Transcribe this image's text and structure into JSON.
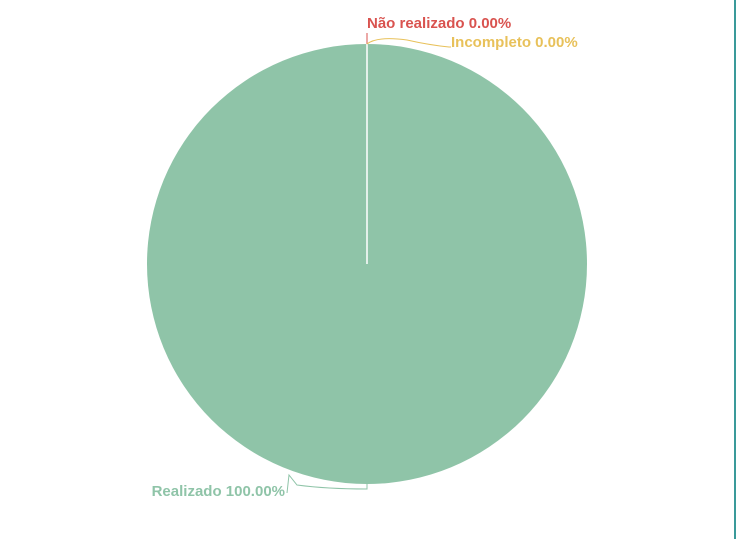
{
  "chart_data": {
    "type": "pie",
    "title": "",
    "slices": [
      {
        "name": "Realizado",
        "value": 100.0,
        "label": "Realizado 100.00%",
        "color": "#8fc4a8"
      },
      {
        "name": "Não realizado",
        "value": 0.0,
        "label": "Não realizado 0.00%",
        "color": "#d9534f"
      },
      {
        "name": "Incompleto",
        "value": 0.0,
        "label": "Incompleto 0.00%",
        "color": "#e8c15a"
      }
    ],
    "legend": "none",
    "start_angle": "top",
    "direction": "clockwise"
  },
  "colors": {
    "frame_border": "#3a9a9a",
    "slice_border": "#ffffff"
  }
}
